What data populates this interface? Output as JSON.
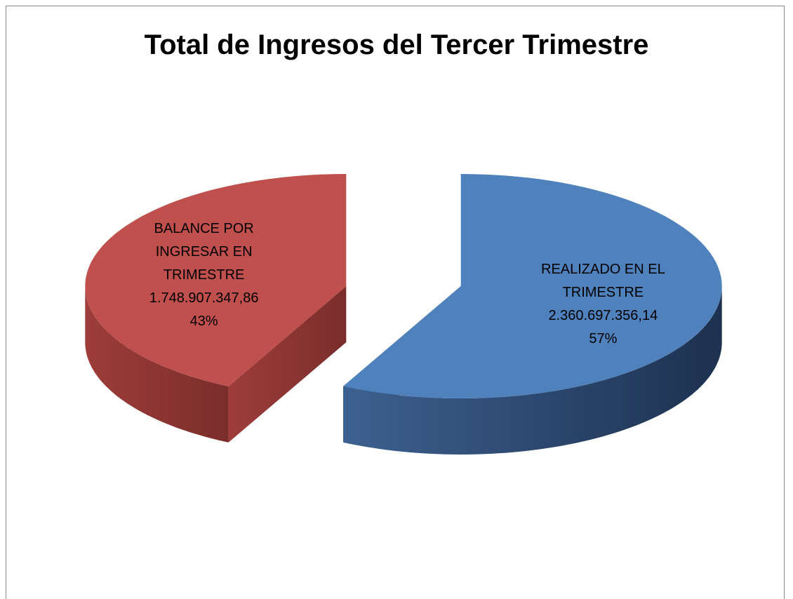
{
  "chart_data": {
    "type": "pie",
    "title": "Total de Ingresos del Tercer Trimestre",
    "categories": [
      "REALIZADO EN EL TRIMESTRE",
      "BALANCE POR INGRESAR EN TRIMESTRE"
    ],
    "values": [
      2360697356.14,
      1748907347.86
    ],
    "value_labels": [
      "2.360.697.356,14",
      "1.748.907.347,86"
    ],
    "percentages": [
      57,
      43
    ],
    "percentage_labels": [
      "57%",
      "43%"
    ],
    "colors": [
      "#4f81bd",
      "#c0504d"
    ]
  }
}
